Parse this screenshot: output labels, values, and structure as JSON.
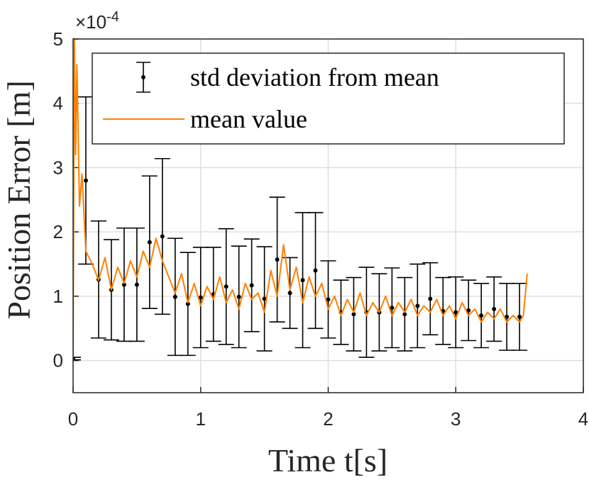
{
  "chart_data": {
    "type": "line",
    "xlabel": "Time t[s]",
    "ylabel": "Position Error [m]",
    "y_multiplier": "×10",
    "y_multiplier_exp": "-4",
    "xlim": [
      0,
      4
    ],
    "xticks": [
      0,
      1,
      2,
      3,
      4
    ],
    "ylim": [
      -0.5,
      5
    ],
    "yticks": [
      0,
      1,
      2,
      3,
      4,
      5
    ],
    "grid": true,
    "legend": "north",
    "series": [
      {
        "name": "std deviation from mean",
        "type": "errorbar",
        "color": "#000000",
        "x": [
          0,
          0.1,
          0.2,
          0.3,
          0.4,
          0.5,
          0.6,
          0.7,
          0.8,
          0.9,
          1.0,
          1.1,
          1.2,
          1.3,
          1.4,
          1.5,
          1.6,
          1.7,
          1.8,
          1.9,
          2.0,
          2.1,
          2.2,
          2.3,
          2.4,
          2.5,
          2.6,
          2.7,
          2.8,
          2.9,
          3.0,
          3.1,
          3.2,
          3.3,
          3.4,
          3.5
        ],
        "values": [
          0.03,
          2.8,
          1.26,
          1.1,
          1.18,
          1.18,
          1.84,
          1.93,
          0.99,
          0.88,
          0.98,
          1.03,
          1.15,
          0.99,
          1.17,
          0.96,
          1.57,
          1.05,
          1.25,
          1.4,
          0.95,
          0.75,
          0.72,
          0.75,
          0.75,
          0.82,
          0.72,
          0.85,
          0.96,
          0.77,
          0.75,
          0.78,
          0.7,
          0.8,
          0.68,
          0.68
        ],
        "errors": [
          0.02,
          1.3,
          0.91,
          0.78,
          0.88,
          0.88,
          1.03,
          1.21,
          0.91,
          0.8,
          0.78,
          0.73,
          0.9,
          0.79,
          0.72,
          0.81,
          0.97,
          0.55,
          1.05,
          0.9,
          0.6,
          0.5,
          0.57,
          0.7,
          0.6,
          0.62,
          0.57,
          0.65,
          0.56,
          0.52,
          0.55,
          0.47,
          0.5,
          0.5,
          0.52,
          0.52
        ]
      },
      {
        "name": "mean value",
        "color": "#ff8000",
        "x": [
          0,
          0.01,
          0.02,
          0.03,
          0.05,
          0.07,
          0.1,
          0.15,
          0.2,
          0.25,
          0.3,
          0.35,
          0.4,
          0.45,
          0.5,
          0.55,
          0.6,
          0.65,
          0.7,
          0.75,
          0.8,
          0.85,
          0.9,
          0.95,
          1.0,
          1.05,
          1.1,
          1.15,
          1.2,
          1.25,
          1.3,
          1.35,
          1.4,
          1.45,
          1.5,
          1.55,
          1.6,
          1.65,
          1.7,
          1.75,
          1.8,
          1.85,
          1.9,
          1.95,
          2.0,
          2.05,
          2.1,
          2.15,
          2.2,
          2.25,
          2.3,
          2.35,
          2.4,
          2.45,
          2.5,
          2.55,
          2.6,
          2.65,
          2.7,
          2.75,
          2.8,
          2.85,
          2.9,
          2.95,
          3.0,
          3.05,
          3.1,
          3.15,
          3.2,
          3.25,
          3.3,
          3.35,
          3.4,
          3.45,
          3.5,
          3.53,
          3.56
        ],
        "values": [
          0,
          5,
          3.2,
          4.6,
          2.4,
          2.9,
          1.7,
          1.5,
          1.25,
          1.6,
          1.1,
          1.45,
          1.2,
          1.55,
          1.3,
          1.7,
          1.45,
          1.9,
          1.55,
          1.3,
          1.05,
          1.35,
          0.9,
          1.2,
          0.85,
          1.15,
          0.95,
          1.3,
          0.9,
          1.1,
          0.8,
          1.2,
          0.95,
          1.05,
          0.75,
          1.4,
          1.0,
          1.8,
          1.1,
          1.45,
          0.9,
          1.3,
          1.0,
          1.2,
          0.8,
          1.0,
          0.7,
          0.95,
          0.75,
          1.05,
          0.7,
          0.9,
          0.75,
          1.0,
          0.7,
          0.9,
          0.75,
          0.95,
          0.7,
          0.85,
          0.75,
          0.95,
          0.7,
          0.85,
          0.65,
          0.9,
          0.7,
          0.8,
          0.6,
          0.75,
          0.65,
          0.8,
          0.6,
          0.7,
          0.6,
          0.7,
          1.35
        ]
      }
    ]
  }
}
